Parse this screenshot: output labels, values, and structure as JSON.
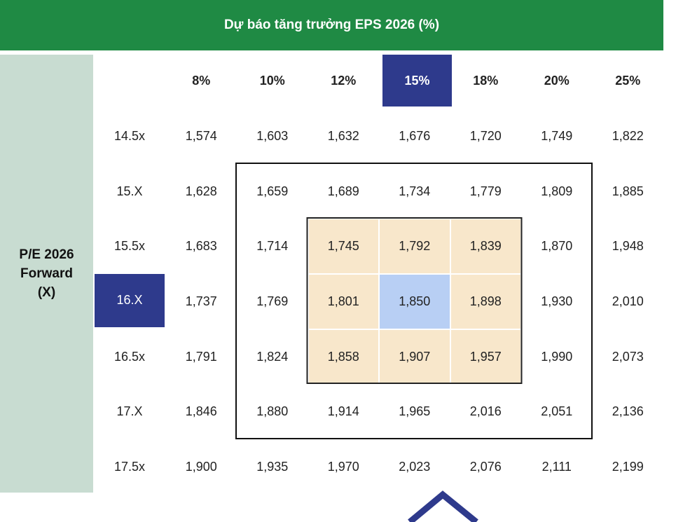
{
  "header": {
    "title": "Dự báo tăng trưởng EPS 2026 (%)"
  },
  "side_label": [
    "P/E 2026",
    "Forward",
    "(X)"
  ],
  "table": {
    "columns": [
      "8%",
      "10%",
      "12%",
      "15%",
      "18%",
      "20%",
      "25%"
    ],
    "rows": [
      {
        "label": "14.5x",
        "cells": [
          "1,574",
          "1,603",
          "1,632",
          "1,676",
          "1,720",
          "1,749",
          "1,822"
        ]
      },
      {
        "label": "15.X",
        "cells": [
          "1,628",
          "1,659",
          "1,689",
          "1,734",
          "1,779",
          "1,809",
          "1,885"
        ]
      },
      {
        "label": "15.5x",
        "cells": [
          "1,683",
          "1,714",
          "1,745",
          "1,792",
          "1,839",
          "1,870",
          "1,948"
        ]
      },
      {
        "label": "16.X",
        "cells": [
          "1,737",
          "1,769",
          "1,801",
          "1,850",
          "1,898",
          "1,930",
          "2,010"
        ]
      },
      {
        "label": "16.5x",
        "cells": [
          "1,791",
          "1,824",
          "1,858",
          "1,907",
          "1,957",
          "1,990",
          "2,073"
        ]
      },
      {
        "label": "17.X",
        "cells": [
          "1,846",
          "1,880",
          "1,914",
          "1,965",
          "2,016",
          "2,051",
          "2,136"
        ]
      },
      {
        "label": "17.5x",
        "cells": [
          "1,900",
          "1,935",
          "1,970",
          "2,023",
          "2,076",
          "2,111",
          "2,199"
        ]
      }
    ]
  }
}
